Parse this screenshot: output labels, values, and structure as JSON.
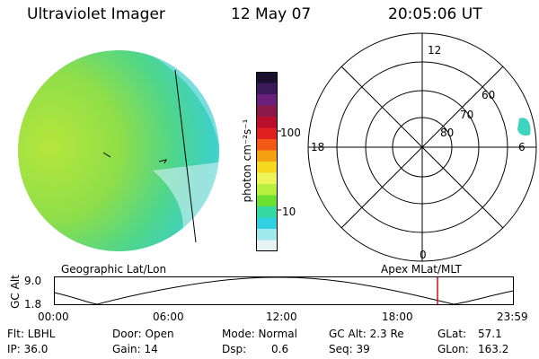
{
  "header": {
    "instrument": "Ultraviolet Imager",
    "date": "12 May 07",
    "time": "20:05:06 UT"
  },
  "colorbar": {
    "unit_label": "photon cm⁻²s⁻¹",
    "ticks": [
      "100",
      "10"
    ],
    "colors": [
      "#1a0f2e",
      "#3a1a5a",
      "#6a1f7a",
      "#8a1a4a",
      "#b8102a",
      "#e0201e",
      "#f05a14",
      "#f5a010",
      "#f5d820",
      "#eef55a",
      "#b8f040",
      "#6ae030",
      "#34d8a0",
      "#30d0e0",
      "#a0e8ec",
      "#e6f2f4"
    ]
  },
  "polar_plot": {
    "mlt_labels": [
      "12",
      "18",
      "6",
      "0"
    ],
    "lat_labels": [
      "60",
      "70",
      "80"
    ]
  },
  "timeline": {
    "geo_label": "Geographic Lat/Lon",
    "apex_label": "Apex  MLat/MLT",
    "axis_title": "GC Alt",
    "y_ticks": [
      "9.0",
      "1.8"
    ],
    "x_ticks": [
      "00:00",
      "06:00",
      "12:00",
      "18:00",
      "23:59"
    ],
    "marker_time": "20:05",
    "marker_color": "#d01010"
  },
  "status": {
    "flt": "Flt: LBHL",
    "ip": "IP: 36.0",
    "door": "Door: Open",
    "gain": "Gain: 14",
    "mode": "Mode: Normal",
    "dsp_label": "Dsp:",
    "dsp_value": "0.6",
    "gc_alt": "GC Alt: 2.3 Re",
    "seq": "Seq: 39",
    "glat_label": "GLat:",
    "glat_value": "57.1",
    "glon_label": "GLon:",
    "glon_value": "163.2"
  }
}
